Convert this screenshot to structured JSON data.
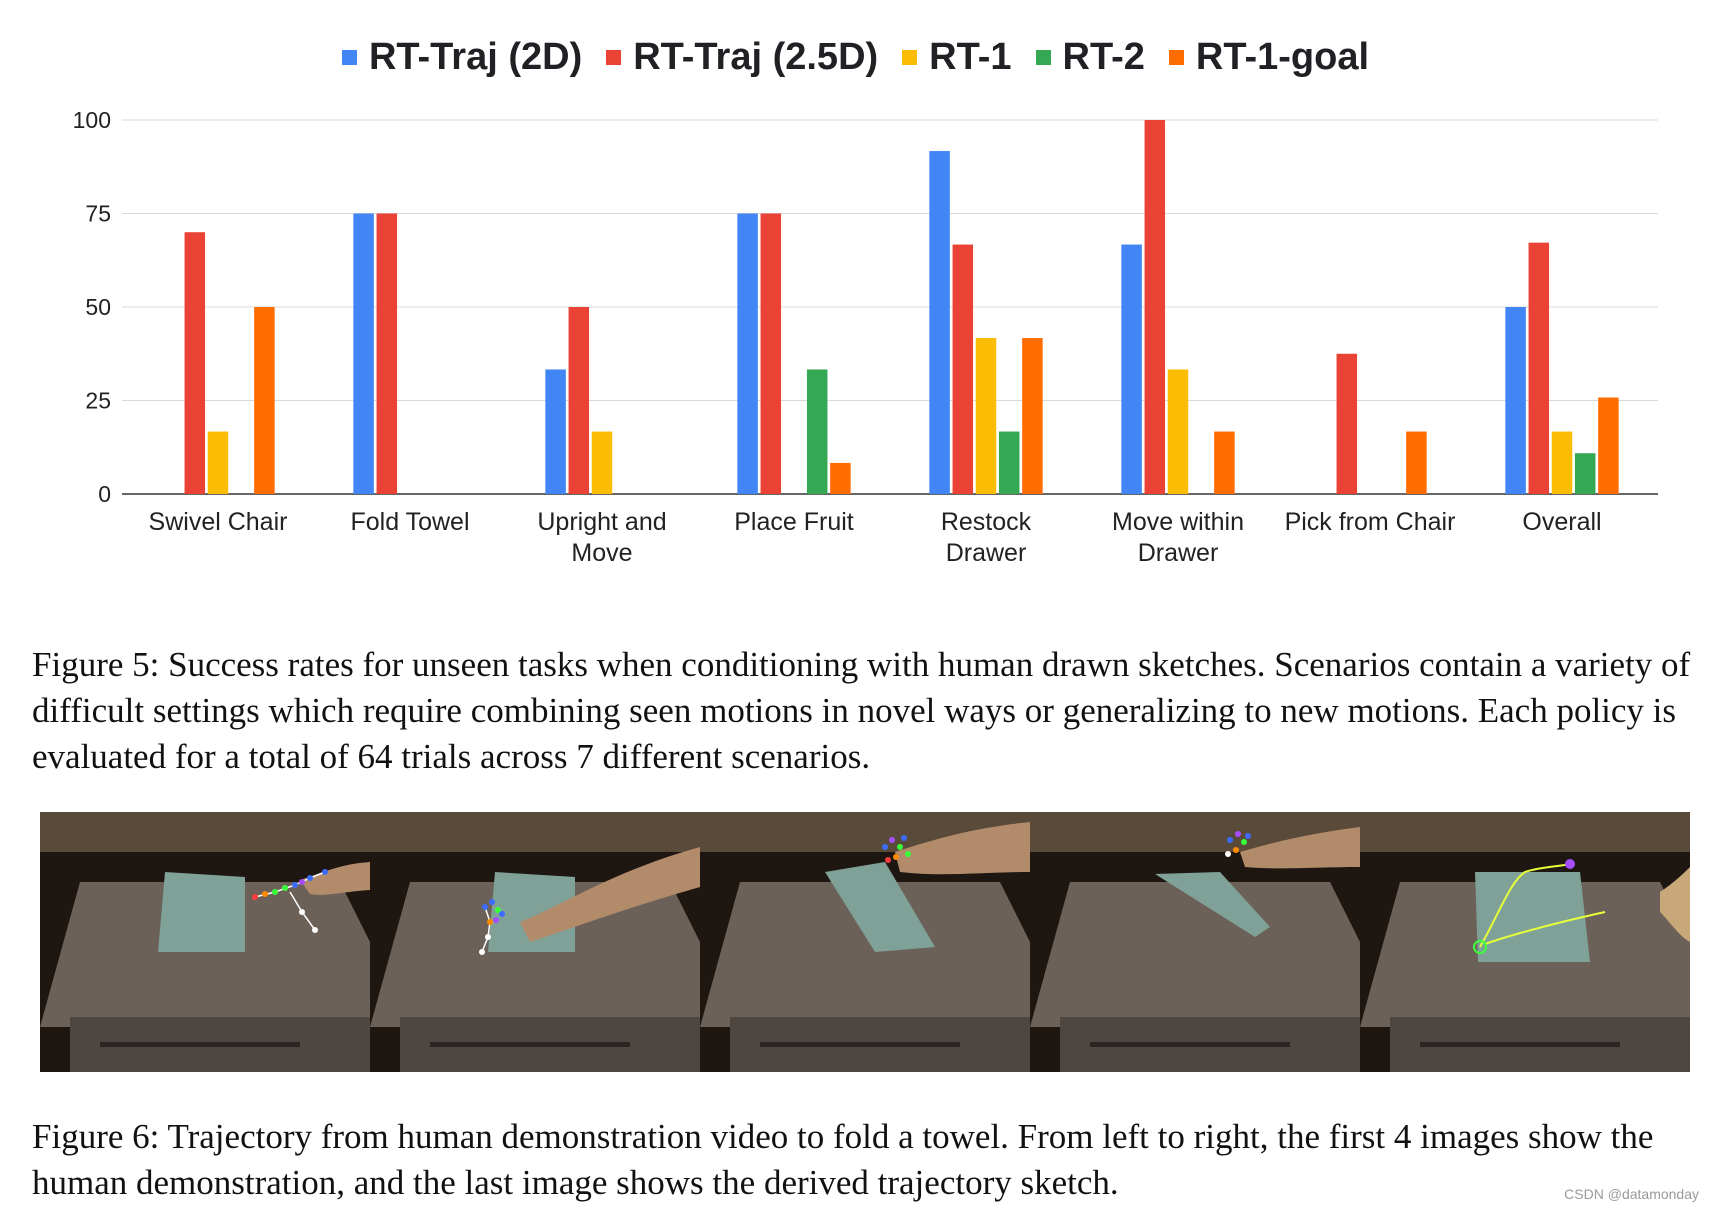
{
  "chart_data": {
    "type": "bar",
    "categories": [
      [
        "Swivel Chair"
      ],
      [
        "Fold Towel"
      ],
      [
        "Upright and",
        "Move"
      ],
      [
        "Place Fruit"
      ],
      [
        "Restock",
        "Drawer"
      ],
      [
        "Move within",
        "Drawer"
      ],
      [
        "Pick from Chair"
      ],
      [
        "Overall"
      ]
    ],
    "series": [
      {
        "name": "RT-Traj (2D)",
        "color": "#4285f4",
        "values": [
          0,
          75,
          33.3,
          75,
          91.7,
          66.7,
          0,
          50
        ]
      },
      {
        "name": "RT-Traj (2.5D)",
        "color": "#ea4335",
        "values": [
          70,
          75,
          50,
          75,
          66.7,
          100,
          37.5,
          67.2
        ]
      },
      {
        "name": "RT-1",
        "color": "#fbbc04",
        "values": [
          16.7,
          0,
          16.7,
          0,
          41.7,
          33.3,
          0,
          16.7
        ]
      },
      {
        "name": "RT-2",
        "color": "#34a853",
        "values": [
          0,
          0,
          0,
          33.3,
          16.7,
          0,
          0,
          10.9
        ]
      },
      {
        "name": "RT-1-goal",
        "color": "#ff6d01",
        "values": [
          50,
          0,
          0,
          8.3,
          41.7,
          16.7,
          16.7,
          25.8
        ]
      }
    ],
    "yticks": [
      0,
      25,
      50,
      75,
      100
    ],
    "ylim": [
      0,
      100
    ],
    "grid": true,
    "legend_position": "top"
  },
  "captions": {
    "figure5": "Figure 5: Success rates for unseen tasks when conditioning with human drawn sketches. Scenarios contain a variety of difficult settings which require combining seen motions in novel ways or generalizing to new motions. Each policy is evaluated for a total of 64 trials across 7 different scenarios.",
    "figure6": "Figure 6: Trajectory from human demonstration video to fold a towel. From left to right, the first 4 images show the human demonstration, and the last image shows the derived trajectory sketch."
  },
  "watermark": "CSDN @datamonday"
}
